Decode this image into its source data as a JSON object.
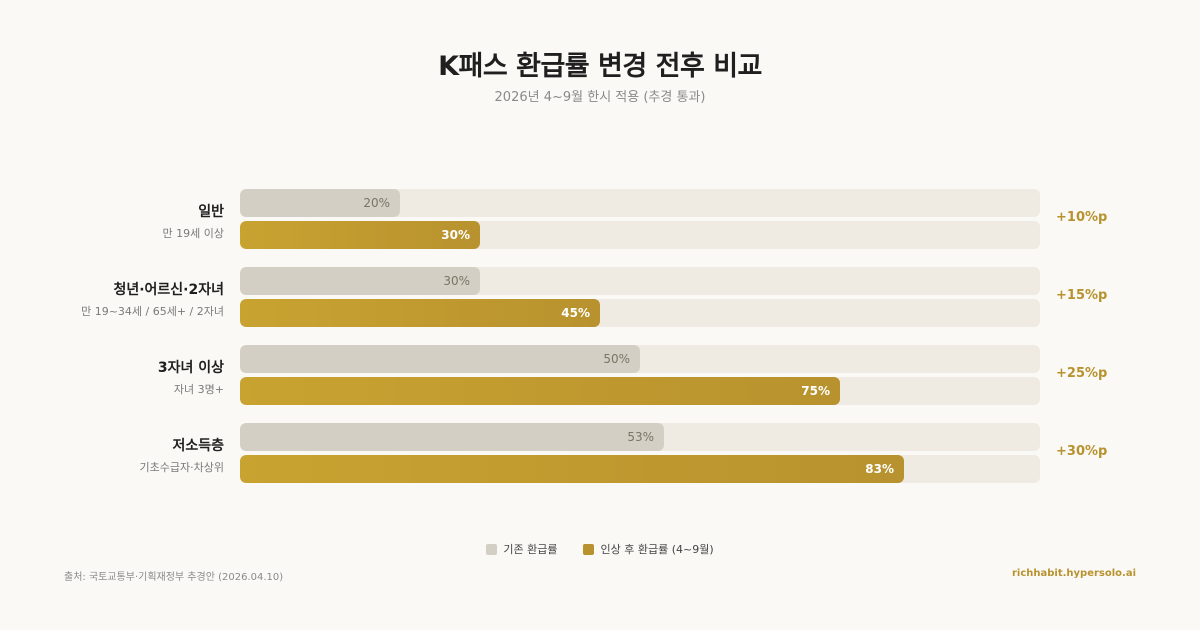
{
  "header": {
    "title": "K패스 환급률 변경 전후 비교",
    "subtitle": "2026년 4~9월 한시 적용 (추경 통과)"
  },
  "chart_data": {
    "type": "bar",
    "orientation": "horizontal",
    "title": "K패스 환급률 변경 전후 비교",
    "subtitle": "2026년 4~9월 한시 적용 (추경 통과)",
    "categories": [
      "일반",
      "청년·어르신·2자녀",
      "3자녀 이상",
      "저소득층"
    ],
    "category_subtitles": [
      "만 19세 이상",
      "만 19~34세 / 65세+ / 2자녀",
      "자녀 3명+",
      "기초수급자·차상위"
    ],
    "series": [
      {
        "name": "기존 환급률",
        "values": [
          20,
          30,
          50,
          53
        ],
        "labels": [
          "20%",
          "30%",
          "50%",
          "53%"
        ],
        "color": "#d4cfc4"
      },
      {
        "name": "인상 후 환급률 (4~9월)",
        "values": [
          30,
          45,
          75,
          83
        ],
        "labels": [
          "30%",
          "45%",
          "75%",
          "83%"
        ],
        "color": "#b8922e"
      }
    ],
    "deltas": [
      "+10%p",
      "+15%p",
      "+25%p",
      "+30%p"
    ],
    "xlim": [
      0,
      100
    ],
    "grid": false,
    "legend_position": "bottom-center"
  },
  "footer": {
    "source": "출처: 국토교통부·기획재정부 추경안 (2026.04.10)",
    "brand": "richhabit.hypersolo.ai"
  },
  "colors": {
    "accent": "#b8922e",
    "before_bar": "#d4cfc4",
    "track": "#efebe3",
    "background": "#faf9f6"
  }
}
